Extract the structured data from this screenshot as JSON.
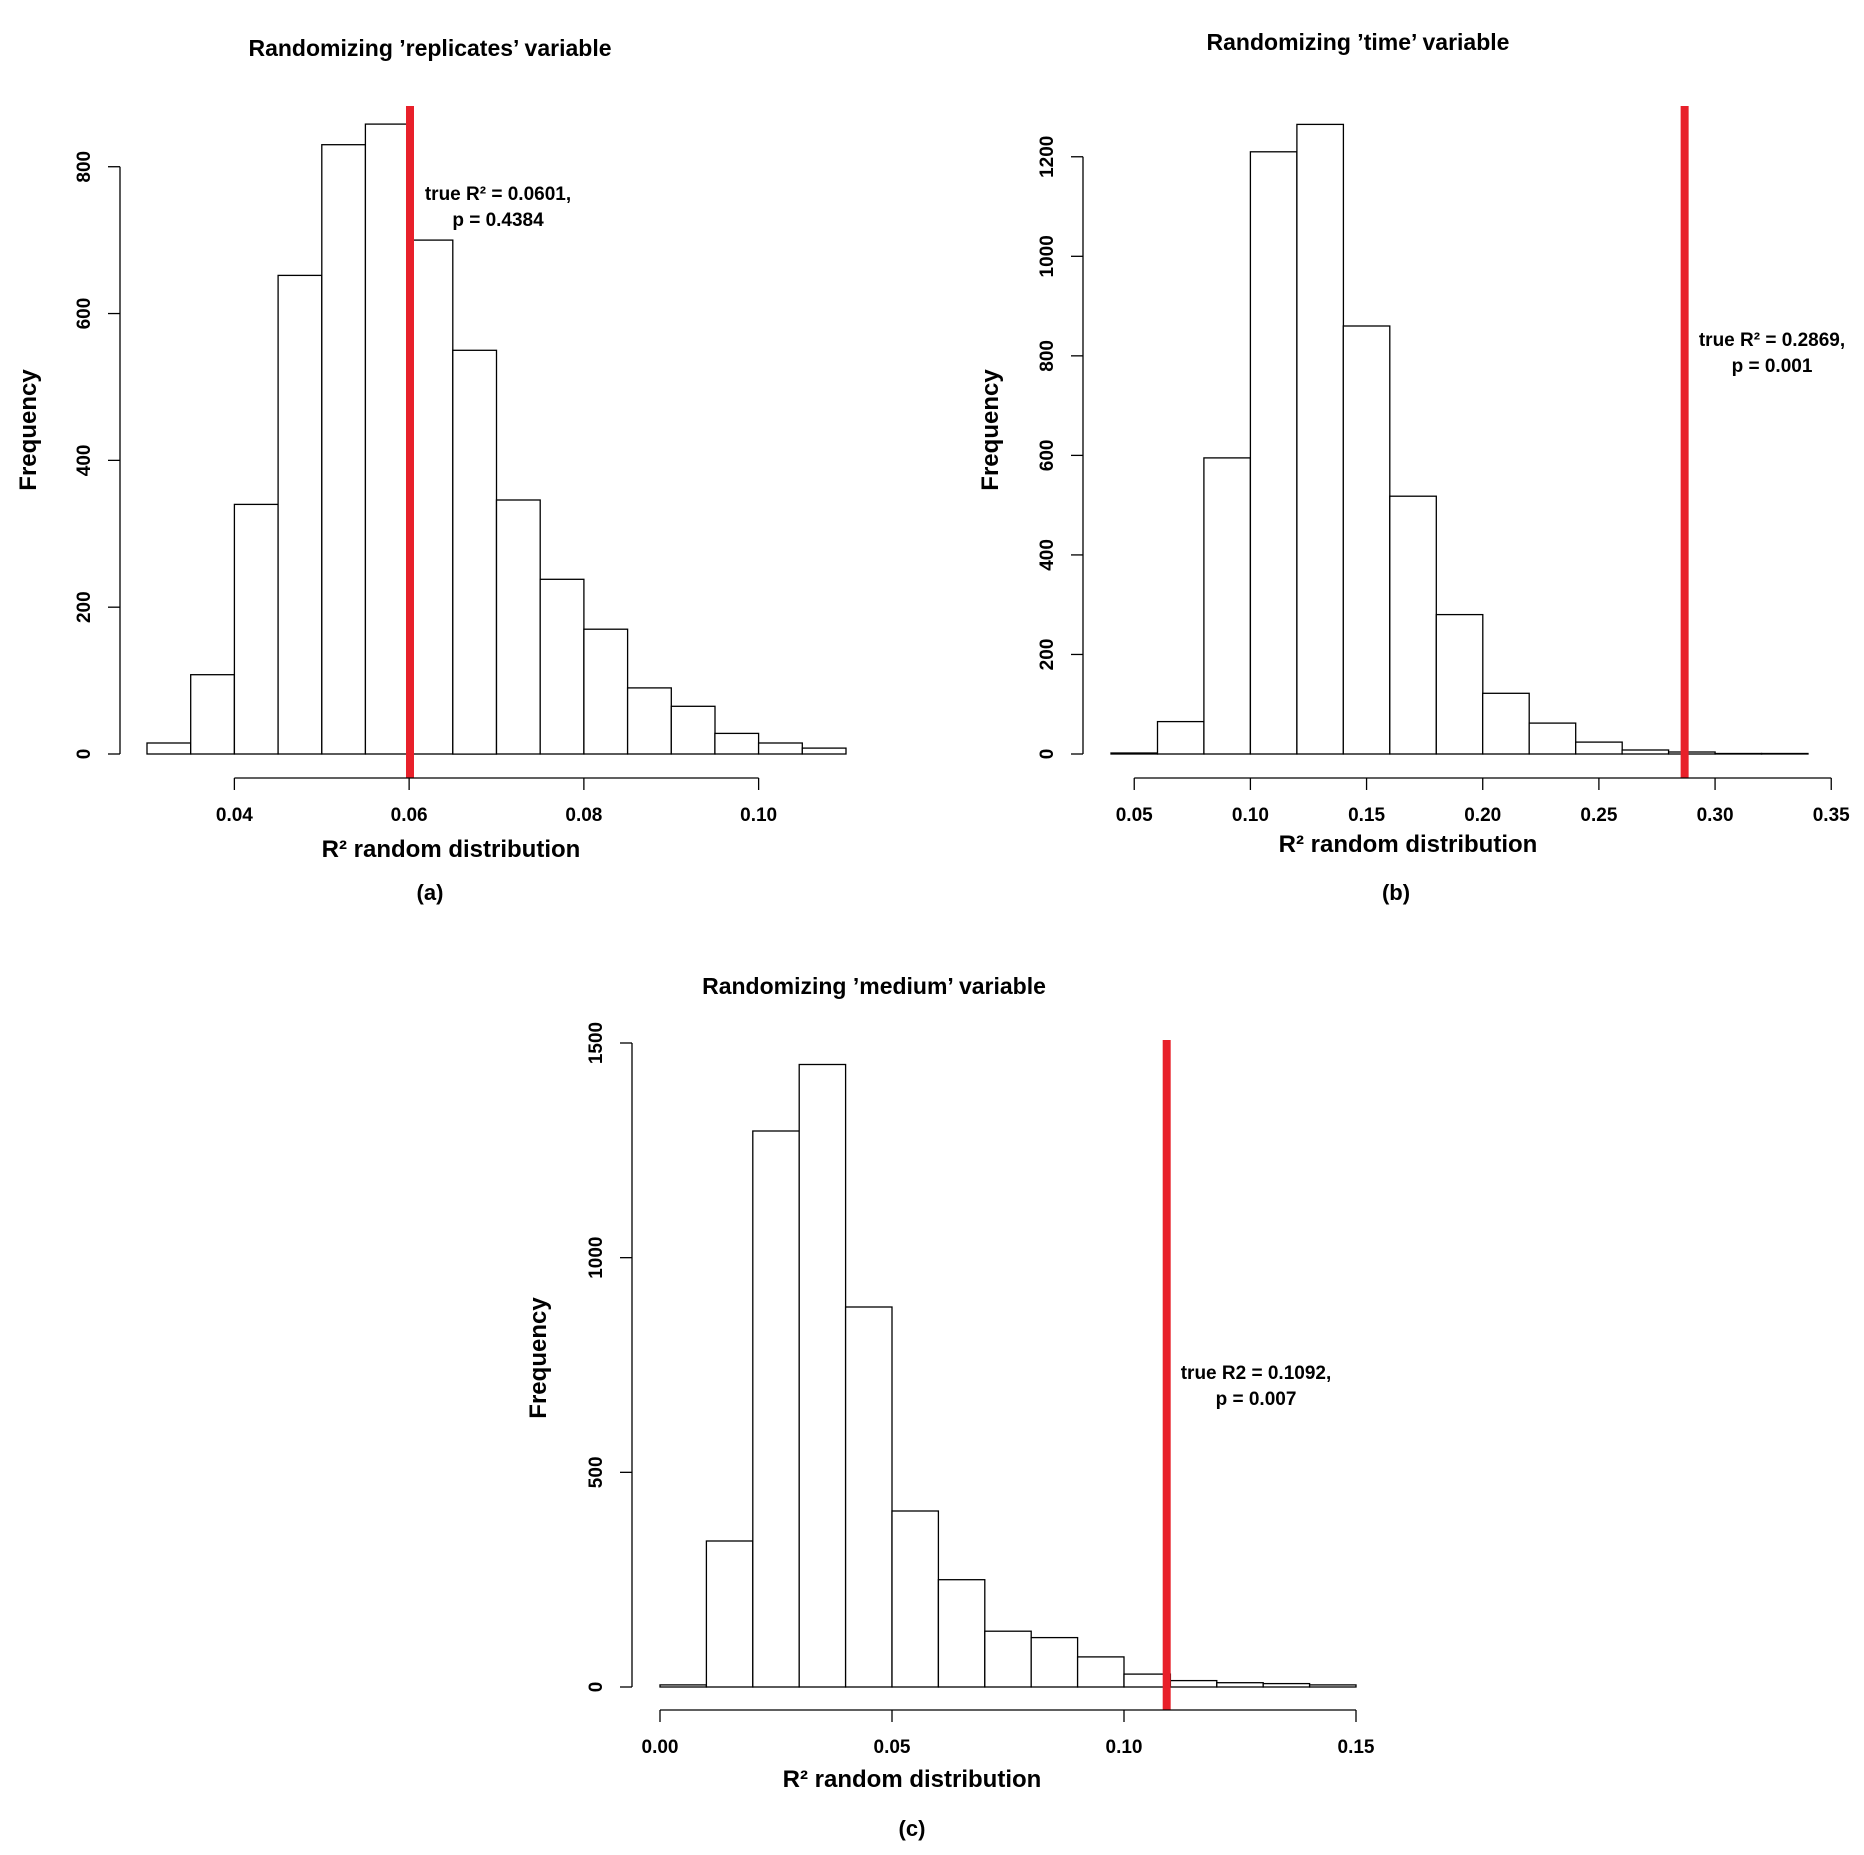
{
  "chart_data": [
    {
      "id": "a",
      "type": "bar",
      "title": "Randomizing ’replicates’ variable",
      "xlabel": "R² random distribution",
      "ylabel": "Frequency",
      "panel_label": "(a)",
      "bin_edges": [
        0.03,
        0.035,
        0.04,
        0.045,
        0.05,
        0.055,
        0.06,
        0.065,
        0.07,
        0.075,
        0.08,
        0.085,
        0.09,
        0.095,
        0.1,
        0.105,
        0.11
      ],
      "counts": [
        15,
        108,
        340,
        652,
        830,
        858,
        700,
        550,
        346,
        238,
        170,
        90,
        65,
        28,
        15,
        8
      ],
      "xlim": [
        0.03,
        0.11
      ],
      "ylim": [
        0,
        880
      ],
      "x_ticks": [
        0.04,
        0.06,
        0.08,
        0.1
      ],
      "x_tick_labels": [
        "0.04",
        "0.06",
        "0.08",
        "0.10"
      ],
      "y_ticks": [
        0,
        200,
        400,
        600,
        800
      ],
      "y_tick_labels": [
        "0",
        "200",
        "400",
        "600",
        "800"
      ],
      "true_value": 0.0601,
      "true_line_color": "#e8202a",
      "annotation": [
        "true R² = 0.0601,",
        "p = 0.4384"
      ]
    },
    {
      "id": "b",
      "type": "bar",
      "title": "Randomizing ’time’ variable",
      "xlabel": "R² random distribution",
      "ylabel": "Frequency",
      "panel_label": "(b)",
      "bin_edges": [
        0.04,
        0.06,
        0.08,
        0.1,
        0.12,
        0.14,
        0.16,
        0.18,
        0.2,
        0.22,
        0.24,
        0.26,
        0.28,
        0.3,
        0.32,
        0.34
      ],
      "counts": [
        2,
        65,
        595,
        1210,
        1265,
        860,
        518,
        280,
        122,
        62,
        24,
        8,
        4,
        1,
        1
      ],
      "xlim": [
        0.04,
        0.34
      ],
      "ylim": [
        0,
        1300
      ],
      "x_ticks": [
        0.05,
        0.1,
        0.15,
        0.2,
        0.25,
        0.3,
        0.35
      ],
      "x_tick_labels": [
        "0.05",
        "0.10",
        "0.15",
        "0.20",
        "0.25",
        "0.30",
        "0.35"
      ],
      "y_ticks": [
        0,
        200,
        400,
        600,
        800,
        1000,
        1200
      ],
      "y_tick_labels": [
        "0",
        "200",
        "400",
        "600",
        "800",
        "1000",
        "1200"
      ],
      "true_value": 0.2869,
      "true_line_color": "#e8202a",
      "annotation": [
        "true R² = 0.2869,",
        "p = 0.001"
      ]
    },
    {
      "id": "c",
      "type": "bar",
      "title": "Randomizing ’medium’ variable",
      "xlabel": "R² random distribution",
      "ylabel": "Frequency",
      "panel_label": "(c)",
      "bin_edges": [
        0.0,
        0.01,
        0.02,
        0.03,
        0.04,
        0.05,
        0.06,
        0.07,
        0.08,
        0.09,
        0.1,
        0.11,
        0.12,
        0.13,
        0.14,
        0.15
      ],
      "counts": [
        5,
        340,
        1295,
        1450,
        885,
        410,
        250,
        130,
        115,
        70,
        30,
        15,
        10,
        8,
        5
      ],
      "xlim": [
        0.0,
        0.15
      ],
      "ylim": [
        0,
        1500
      ],
      "x_ticks": [
        0.0,
        0.05,
        0.1,
        0.15
      ],
      "x_tick_labels": [
        "0.00",
        "0.05",
        "0.10",
        "0.15"
      ],
      "y_ticks": [
        0,
        500,
        1000,
        1500
      ],
      "y_tick_labels": [
        "0",
        "500",
        "1000",
        "1500"
      ],
      "true_value": 0.1092,
      "true_line_color": "#e8202a",
      "annotation": [
        "true R2 = 0.1092,",
        "p = 0.007"
      ]
    }
  ]
}
